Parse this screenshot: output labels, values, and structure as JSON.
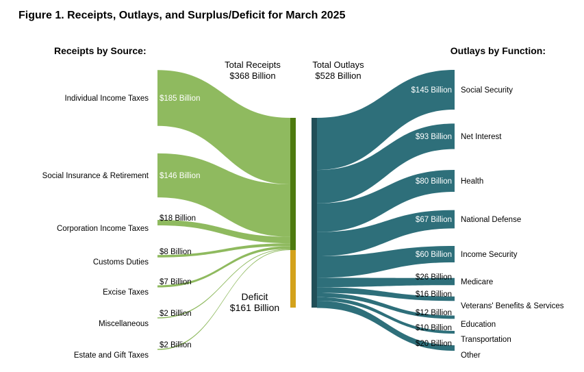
{
  "figure_title": "Figure 1. Receipts, Outlays, and Surplus/Deficit for March 2025",
  "receipts_header": "Receipts by Source:",
  "outlays_header": "Outlays by Function:",
  "total_receipts": {
    "line1": "Total Receipts",
    "line2": "$368 Billion"
  },
  "total_outlays": {
    "line1": "Total Outlays",
    "line2": "$528 Billion"
  },
  "deficit": {
    "line1": "Deficit",
    "line2": "$161 Billion"
  },
  "colors": {
    "receipts": "#8fba5f",
    "receipts_node": "#4e7a0f",
    "deficit_node": "#d3a21b",
    "outlays": "#2e6f7a",
    "outlays_node": "#214f58",
    "label_on_band": "#ffffff"
  },
  "chart_data": {
    "type": "sankey",
    "units": "Billion dollars",
    "sources": [
      {
        "name": "Individual Income Taxes",
        "value": 185,
        "value_label": "$185 Billion"
      },
      {
        "name": "Social Insurance & Retirement",
        "value": 146,
        "value_label": "$146 Billion"
      },
      {
        "name": "Corporation Income Taxes",
        "value": 18,
        "value_label": "$18 Billion"
      },
      {
        "name": "Customs Duties",
        "value": 8,
        "value_label": "$8 Billion"
      },
      {
        "name": "Excise Taxes",
        "value": 7,
        "value_label": "$7 Billion"
      },
      {
        "name": "Miscellaneous",
        "value": 2,
        "value_label": "$2 Billion"
      },
      {
        "name": "Estate and Gift Taxes",
        "value": 2,
        "value_label": "$2 Billion"
      }
    ],
    "total_receipts": 368,
    "deficit": 161,
    "total_outlays": 528,
    "functions": [
      {
        "name": "Social Security",
        "value": 145,
        "value_label": "$145 Billion"
      },
      {
        "name": "Net Interest",
        "value": 93,
        "value_label": "$93 Billion"
      },
      {
        "name": "Health",
        "value": 80,
        "value_label": "$80 Billion"
      },
      {
        "name": "National Defense",
        "value": 67,
        "value_label": "$67 Billion"
      },
      {
        "name": "Income Security",
        "value": 60,
        "value_label": "$60 Billion"
      },
      {
        "name": "Medicare",
        "value": 26,
        "value_label": "$26 Billion"
      },
      {
        "name": "Veterans' Benefits & Services",
        "value": 16,
        "value_label": "$16 Billion"
      },
      {
        "name": "Education",
        "value": 12,
        "value_label": "$12 Billion"
      },
      {
        "name": "Transportation",
        "value": 10,
        "value_label": "$10 Billion"
      },
      {
        "name": "Other",
        "value": 20,
        "value_label": "$20 Billion"
      }
    ]
  }
}
